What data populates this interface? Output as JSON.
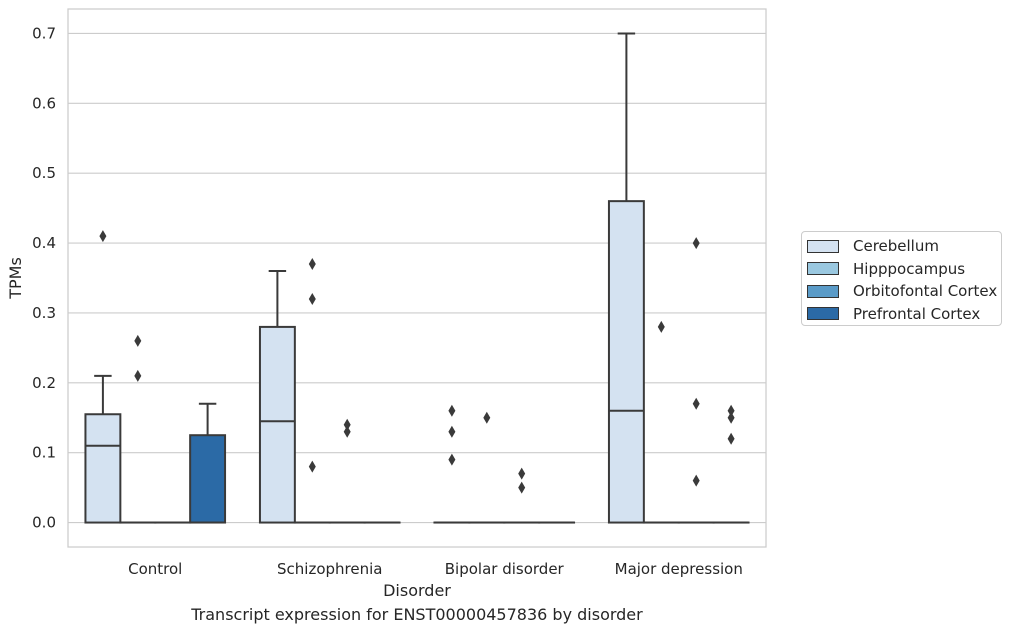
{
  "chart_data": {
    "type": "box",
    "xlabel": "Disorder",
    "ylabel": "TPMs",
    "ylim": [
      -0.035,
      0.735
    ],
    "yticks": [
      0.0,
      0.1,
      0.2,
      0.3,
      0.4,
      0.5,
      0.6,
      0.7
    ],
    "ytick_labels": [
      "0.0",
      "0.1",
      "0.2",
      "0.3",
      "0.4",
      "0.5",
      "0.6",
      "0.7"
    ],
    "grid": true,
    "legend_position": "right",
    "categories": [
      "Control",
      "Schizophrenia",
      "Bipolar disorder",
      "Major depression"
    ],
    "series": [
      {
        "name": "Cerebellum",
        "color": "#d4e2f1",
        "boxes": [
          {
            "q1": 0.0,
            "median": 0.11,
            "q3": 0.155,
            "whisker_low": 0.0,
            "whisker_high": 0.21,
            "outliers": [
              0.41
            ]
          },
          {
            "q1": 0.0,
            "median": 0.145,
            "q3": 0.28,
            "whisker_low": 0.0,
            "whisker_high": 0.36,
            "outliers": []
          },
          {
            "q1": 0.0,
            "median": 0.0,
            "q3": 0.0,
            "whisker_low": 0.0,
            "whisker_high": 0.0,
            "outliers": [
              0.16,
              0.13,
              0.09
            ]
          },
          {
            "q1": 0.0,
            "median": 0.16,
            "q3": 0.46,
            "whisker_low": 0.0,
            "whisker_high": 0.7,
            "outliers": []
          }
        ]
      },
      {
        "name": "Hipppocampus",
        "color": "#9ac8e0",
        "boxes": [
          {
            "q1": 0.0,
            "median": 0.0,
            "q3": 0.0,
            "whisker_low": 0.0,
            "whisker_high": 0.0,
            "outliers": [
              0.26,
              0.21
            ]
          },
          {
            "q1": 0.0,
            "median": 0.0,
            "q3": 0.0,
            "whisker_low": 0.0,
            "whisker_high": 0.0,
            "outliers": [
              0.37,
              0.32,
              0.08
            ]
          },
          {
            "q1": 0.0,
            "median": 0.0,
            "q3": 0.0,
            "whisker_low": 0.0,
            "whisker_high": 0.0,
            "outliers": [
              0.15
            ]
          },
          {
            "q1": 0.0,
            "median": 0.0,
            "q3": 0.0,
            "whisker_low": 0.0,
            "whisker_high": 0.0,
            "outliers": [
              0.28
            ]
          }
        ]
      },
      {
        "name": "Orbitofontal Cortex",
        "color": "#5a9bc8",
        "boxes": [
          {
            "q1": 0.0,
            "median": 0.0,
            "q3": 0.0,
            "whisker_low": 0.0,
            "whisker_high": 0.0,
            "outliers": []
          },
          {
            "q1": 0.0,
            "median": 0.0,
            "q3": 0.0,
            "whisker_low": 0.0,
            "whisker_high": 0.0,
            "outliers": [
              0.14,
              0.13
            ]
          },
          {
            "q1": 0.0,
            "median": 0.0,
            "q3": 0.0,
            "whisker_low": 0.0,
            "whisker_high": 0.0,
            "outliers": [
              0.07,
              0.05
            ]
          },
          {
            "q1": 0.0,
            "median": 0.0,
            "q3": 0.0,
            "whisker_low": 0.0,
            "whisker_high": 0.0,
            "outliers": [
              0.4,
              0.17,
              0.06
            ]
          }
        ]
      },
      {
        "name": "Prefrontal Cortex",
        "color": "#2b6aa6",
        "boxes": [
          {
            "q1": 0.0,
            "median": 0.0,
            "q3": 0.125,
            "whisker_low": 0.0,
            "whisker_high": 0.17,
            "outliers": []
          },
          {
            "q1": 0.0,
            "median": 0.0,
            "q3": 0.0,
            "whisker_low": 0.0,
            "whisker_high": 0.0,
            "outliers": []
          },
          {
            "q1": 0.0,
            "median": 0.0,
            "q3": 0.0,
            "whisker_low": 0.0,
            "whisker_high": 0.0,
            "outliers": []
          },
          {
            "q1": 0.0,
            "median": 0.0,
            "q3": 0.0,
            "whisker_low": 0.0,
            "whisker_high": 0.0,
            "outliers": [
              0.16,
              0.15,
              0.12
            ]
          }
        ]
      }
    ]
  },
  "caption": "Transcript expression for ENST00000457836 by disorder",
  "styles": {
    "grid_color": "#cccccc",
    "frame_color": "#cccccc",
    "box_edge_color": "#3a3a3a",
    "outlier_color": "#3a3a3a"
  }
}
